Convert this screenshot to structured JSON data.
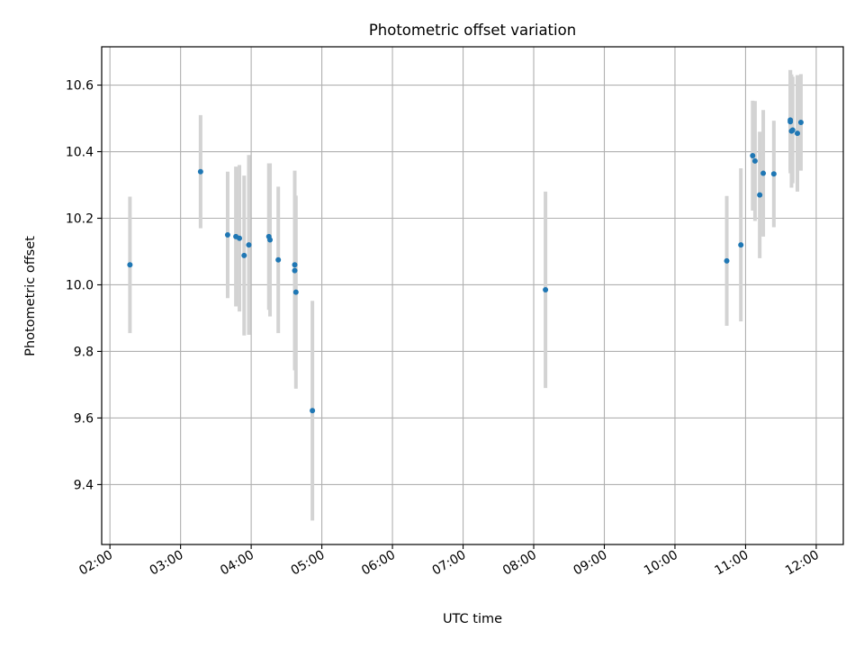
{
  "chart_data": {
    "type": "scatter",
    "title": "Photometric offset variation",
    "xlabel": "UTC time",
    "ylabel": "Photometric offset",
    "xlim": [
      "01:53",
      "12:23"
    ],
    "ylim": [
      9.22,
      10.715
    ],
    "x_ticks": [
      "02:00",
      "03:00",
      "04:00",
      "05:00",
      "06:00",
      "07:00",
      "08:00",
      "09:00",
      "10:00",
      "11:00",
      "12:00"
    ],
    "y_ticks": [
      9.4,
      9.6,
      9.8,
      10.0,
      10.2,
      10.4,
      10.6
    ],
    "y_tick_labels": [
      "9.4",
      "9.6",
      "9.8",
      "10.0",
      "10.2",
      "10.4",
      "10.6"
    ],
    "grid": true,
    "series": [
      {
        "marker_color": "#1f77b4",
        "errorbar_color": "#d3d3d3",
        "points": [
          {
            "x": "02:17",
            "y": 10.06,
            "err": 0.205
          },
          {
            "x": "03:17",
            "y": 10.34,
            "err": 0.17
          },
          {
            "x": "03:40",
            "y": 10.15,
            "err": 0.19
          },
          {
            "x": "03:47",
            "y": 10.145,
            "err": 0.21
          },
          {
            "x": "03:50",
            "y": 10.14,
            "err": 0.22
          },
          {
            "x": "03:54",
            "y": 10.088,
            "err": 0.24
          },
          {
            "x": "03:58",
            "y": 10.12,
            "err": 0.27
          },
          {
            "x": "04:15",
            "y": 10.145,
            "err": 0.22
          },
          {
            "x": "04:16",
            "y": 10.135,
            "err": 0.23
          },
          {
            "x": "04:23",
            "y": 10.075,
            "err": 0.22
          },
          {
            "x": "04:37",
            "y": 10.06,
            "err": 0.28
          },
          {
            "x": "04:37",
            "y": 10.043,
            "err": 0.3
          },
          {
            "x": "04:38",
            "y": 9.978,
            "err": 0.29
          },
          {
            "x": "04:52",
            "y": 9.622,
            "err": 0.33
          },
          {
            "x": "08:10",
            "y": 9.985,
            "err": 0.295
          },
          {
            "x": "10:44",
            "y": 10.072,
            "err": 0.195
          },
          {
            "x": "10:56",
            "y": 10.12,
            "err": 0.23
          },
          {
            "x": "11:06",
            "y": 10.388,
            "err": 0.165
          },
          {
            "x": "11:08",
            "y": 10.372,
            "err": 0.18
          },
          {
            "x": "11:12",
            "y": 10.27,
            "err": 0.19
          },
          {
            "x": "11:15",
            "y": 10.335,
            "err": 0.19
          },
          {
            "x": "11:24",
            "y": 10.333,
            "err": 0.16
          },
          {
            "x": "11:38",
            "y": 10.49,
            "err": 0.155
          },
          {
            "x": "11:38",
            "y": 10.495,
            "err": 0.15
          },
          {
            "x": "11:39",
            "y": 10.462,
            "err": 0.17
          },
          {
            "x": "11:40",
            "y": 10.465,
            "err": 0.16
          },
          {
            "x": "11:44",
            "y": 10.455,
            "err": 0.175
          },
          {
            "x": "11:47",
            "y": 10.488,
            "err": 0.145
          }
        ]
      }
    ]
  }
}
